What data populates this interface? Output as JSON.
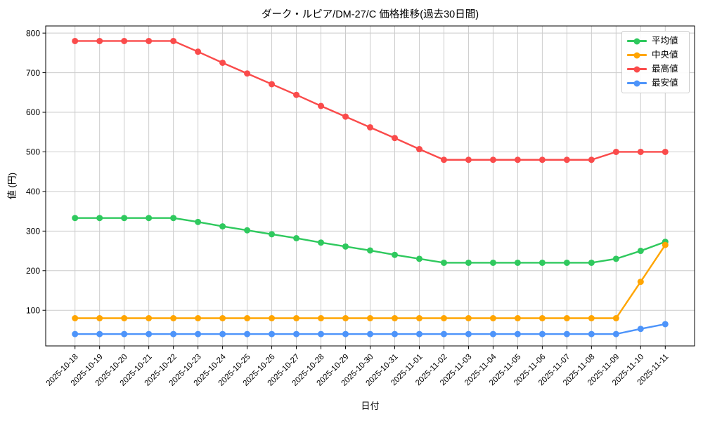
{
  "chart_data": {
    "type": "line",
    "title": "ダーク・ルピア/DM-27/C 価格推移(過去30日間)",
    "xlabel": "日付",
    "ylabel": "値 (円)",
    "ylim": [
      10,
      818
    ],
    "yticks": [
      100,
      200,
      300,
      400,
      500,
      600,
      700,
      800
    ],
    "grid": true,
    "grid_color": "#cccccc",
    "legend_position": "upper right",
    "x": [
      "2025-10-18",
      "2025-10-19",
      "2025-10-20",
      "2025-10-21",
      "2025-10-22",
      "2025-10-23",
      "2025-10-24",
      "2025-10-25",
      "2025-10-26",
      "2025-10-27",
      "2025-10-28",
      "2025-10-29",
      "2025-10-30",
      "2025-10-31",
      "2025-11-01",
      "2025-11-02",
      "2025-11-03",
      "2025-11-04",
      "2025-11-05",
      "2025-11-06",
      "2025-11-07",
      "2025-11-08",
      "2025-11-09",
      "2025-11-10",
      "2025-11-11"
    ],
    "series": [
      {
        "key": "average",
        "name": "平均値",
        "color": "#2fc95e",
        "values": [
          333,
          333,
          333,
          333,
          333,
          323,
          312,
          302,
          292,
          282,
          271,
          261,
          251,
          240,
          230,
          220,
          220,
          220,
          220,
          220,
          220,
          220,
          230,
          250,
          273
        ]
      },
      {
        "key": "median",
        "name": "中央値",
        "color": "#ffa502",
        "values": [
          80,
          80,
          80,
          80,
          80,
          80,
          80,
          80,
          80,
          80,
          80,
          80,
          80,
          80,
          80,
          80,
          80,
          80,
          80,
          80,
          80,
          80,
          80,
          172,
          265
        ]
      },
      {
        "key": "max",
        "name": "最高値",
        "color": "#fa4b4b",
        "values": [
          780,
          780,
          780,
          780,
          780,
          753,
          725,
          698,
          671,
          644,
          616,
          589,
          562,
          535,
          507,
          480,
          480,
          480,
          480,
          480,
          480,
          480,
          500,
          500,
          500
        ]
      },
      {
        "key": "min",
        "name": "最安値",
        "color": "#4d94fa",
        "values": [
          40,
          40,
          40,
          40,
          40,
          40,
          40,
          40,
          40,
          40,
          40,
          40,
          40,
          40,
          40,
          40,
          40,
          40,
          40,
          40,
          40,
          40,
          40,
          53,
          65
        ]
      }
    ]
  }
}
